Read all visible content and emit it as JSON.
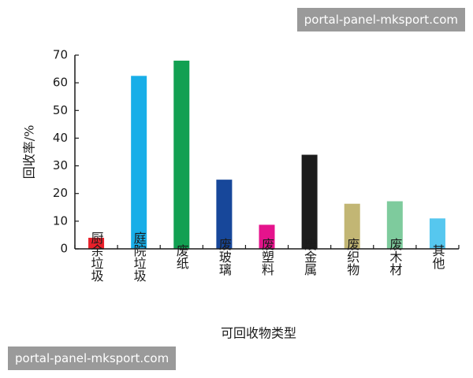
{
  "chart_data": {
    "type": "bar",
    "categories": [
      "厨余垃圾",
      "庭院垃圾",
      "废纸",
      "废玻璃",
      "废塑料",
      "废金属",
      "废织物",
      "废木材",
      "其他"
    ],
    "values": [
      4,
      62.5,
      68,
      25,
      8.7,
      34,
      16.3,
      17.2,
      11
    ],
    "colors": [
      "#e8202a",
      "#18aee8",
      "#12a052",
      "#17479a",
      "#e5138c",
      "#1c1c1c",
      "#c2b674",
      "#7ecb9d",
      "#56c7ef"
    ],
    "ylabel": "回收率/%",
    "xlabel": "可回收物类型",
    "ylim": [
      0,
      70
    ],
    "yticks": [
      0,
      10,
      20,
      30,
      40,
      50,
      60,
      70
    ],
    "grid": false
  },
  "watermarks": {
    "top": "portal-panel-mksport.com",
    "bottom": "portal-panel-mksport.com"
  }
}
